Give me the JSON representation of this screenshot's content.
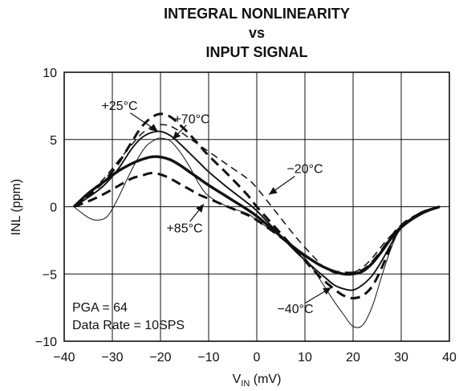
{
  "chart_data": {
    "type": "line",
    "title_lines": [
      "INTEGRAL NONLINEARITY",
      "vs",
      "INPUT SIGNAL"
    ],
    "xlabel_main": "V",
    "xlabel_sub": "IN",
    "xlabel_unit": "(mV)",
    "ylabel": "INL (ppm)",
    "xlim": [
      -40,
      40
    ],
    "ylim": [
      -10,
      10
    ],
    "xticks": [
      -40,
      -30,
      -20,
      -10,
      0,
      10,
      20,
      30,
      40
    ],
    "yticks": [
      -10,
      -5,
      0,
      5,
      10
    ],
    "xtick_labels": [
      "−40",
      "−30",
      "−20",
      "−10",
      "0",
      "10",
      "20",
      "30",
      "40"
    ],
    "ytick_labels": [
      "−10",
      "−5",
      "0",
      "5",
      "10"
    ],
    "grid": true,
    "legend": "none",
    "notes": [
      "PGA = 64",
      "Data Rate = 10SPS"
    ],
    "series": [
      {
        "name": "+25°C",
        "style": "dashed-heavy",
        "x": [
          -38,
          -35,
          -32,
          -29,
          -26,
          -24,
          -22,
          -20,
          -18,
          -16,
          -14,
          -12,
          -10,
          -6,
          -2,
          0,
          4,
          8,
          12,
          14,
          16,
          18,
          20,
          22,
          24,
          26,
          28,
          30,
          34,
          38
        ],
        "y": [
          0,
          0.8,
          1.8,
          3.1,
          4.8,
          5.9,
          6.6,
          6.9,
          6.7,
          6.1,
          5.4,
          4.6,
          3.8,
          2.4,
          0.9,
          0,
          -1.6,
          -3.2,
          -4.8,
          -5.5,
          -6.1,
          -6.6,
          -6.8,
          -6.6,
          -5.9,
          -4.5,
          -2.8,
          -1.4,
          -0.5,
          0
        ]
      },
      {
        "name": "+70°C",
        "style": "solid-medium",
        "x": [
          -38,
          -35,
          -32,
          -29,
          -26,
          -24,
          -22,
          -20,
          -18,
          -16,
          -14,
          -12,
          -10,
          -6,
          -2,
          0,
          4,
          8,
          12,
          14,
          16,
          18,
          20,
          22,
          24,
          26,
          28,
          30,
          34,
          38
        ],
        "y": [
          0,
          0.7,
          1.5,
          2.7,
          4.3,
          5.1,
          5.5,
          5.6,
          5.3,
          4.7,
          4.0,
          3.3,
          2.6,
          1.4,
          0.3,
          -0.3,
          -1.8,
          -3.3,
          -4.6,
          -5.2,
          -5.8,
          -6.1,
          -6.2,
          -5.8,
          -5.1,
          -4.0,
          -2.7,
          -1.6,
          -0.6,
          0
        ]
      },
      {
        "name": "−20°C",
        "style": "dashed-light",
        "x": [
          -38,
          -35,
          -32,
          -29,
          -26,
          -24,
          -22,
          -20,
          -18,
          -16,
          -14,
          -12,
          -10,
          -6,
          -2,
          0,
          4,
          8,
          12,
          14,
          16,
          18,
          20,
          22,
          24,
          26,
          28,
          30,
          34,
          38
        ],
        "y": [
          0,
          1.0,
          2.0,
          3.3,
          4.6,
          5.4,
          5.9,
          6.1,
          6.0,
          5.6,
          5.1,
          4.6,
          4.1,
          3.1,
          2.1,
          1.4,
          -0.4,
          -2.2,
          -3.8,
          -4.5,
          -4.9,
          -5.0,
          -4.9,
          -4.5,
          -3.8,
          -2.9,
          -2.1,
          -1.5,
          -0.6,
          0
        ]
      },
      {
        "name": "+85°C",
        "style": "dashed-heavy",
        "x": [
          -38,
          -35,
          -32,
          -29,
          -26,
          -24,
          -22,
          -20,
          -18,
          -16,
          -14,
          -12,
          -10,
          -6,
          -2,
          0,
          4,
          8,
          12,
          14,
          16,
          18,
          20,
          22,
          24,
          26,
          28,
          30,
          34,
          38
        ],
        "y": [
          0,
          0.4,
          0.9,
          1.5,
          2.1,
          2.3,
          2.5,
          2.4,
          2.1,
          1.7,
          1.3,
          0.9,
          0.6,
          0.0,
          -0.6,
          -1.0,
          -2.0,
          -3.1,
          -4.1,
          -4.5,
          -4.8,
          -4.9,
          -4.9,
          -4.7,
          -4.1,
          -3.2,
          -2.2,
          -1.4,
          -0.5,
          0
        ]
      },
      {
        "name": "−40°C",
        "style": "solid-thin",
        "x": [
          -38,
          -35,
          -33,
          -31,
          -29,
          -27,
          -25,
          -23,
          -21,
          -20,
          -18,
          -16,
          -14,
          -12,
          -10,
          -6,
          -2,
          0,
          4,
          8,
          10,
          12,
          14,
          16,
          18,
          20,
          22,
          24,
          26,
          28,
          30,
          34,
          38
        ],
        "y": [
          0,
          -0.8,
          -1.0,
          -0.7,
          0.5,
          2.0,
          3.4,
          4.5,
          5.0,
          5.1,
          4.9,
          4.1,
          3.0,
          1.7,
          0.8,
          0.0,
          -0.5,
          -1.0,
          -2.0,
          -3.2,
          -3.8,
          -4.8,
          -5.9,
          -7.0,
          -8.0,
          -8.9,
          -8.8,
          -7.4,
          -5.1,
          -3.0,
          -1.6,
          -0.4,
          0
        ]
      },
      {
        "name": "",
        "style": "solid-heavy",
        "x": [
          -38,
          -35,
          -32,
          -29,
          -26,
          -24,
          -22,
          -20,
          -18,
          -16,
          -14,
          -12,
          -10,
          -6,
          -2,
          0,
          4,
          8,
          12,
          14,
          16,
          18,
          20,
          22,
          24,
          26,
          28,
          30,
          34,
          38
        ],
        "y": [
          0,
          1.0,
          1.8,
          2.6,
          3.2,
          3.5,
          3.7,
          3.7,
          3.5,
          3.1,
          2.6,
          2.1,
          1.6,
          0.7,
          -0.2,
          -0.7,
          -1.9,
          -3.1,
          -4.1,
          -4.5,
          -4.8,
          -5.0,
          -5.0,
          -4.8,
          -4.2,
          -3.3,
          -2.3,
          -1.5,
          -0.5,
          0
        ]
      }
    ],
    "annotations": [
      {
        "label": "+25°C",
        "text_x": -28.5,
        "text_y": 7.2,
        "arrow_to_x": -20.5,
        "arrow_to_y": 5.6
      },
      {
        "label": "+70°C",
        "text_x": -13.5,
        "text_y": 6.2,
        "arrow_to_x": -17.5,
        "arrow_to_y": 5.0
      },
      {
        "label": "−20°C",
        "text_x": 10.0,
        "text_y": 2.5,
        "arrow_to_x": 2.5,
        "arrow_to_y": 0.9
      },
      {
        "label": "+85°C",
        "text_x": -15.0,
        "text_y": -1.9,
        "arrow_to_x": -11.0,
        "arrow_to_y": 0.2
      },
      {
        "label": "−40°C",
        "text_x": 8.0,
        "text_y": -7.9,
        "arrow_to_x": 15.5,
        "arrow_to_y": -6.0
      }
    ]
  }
}
